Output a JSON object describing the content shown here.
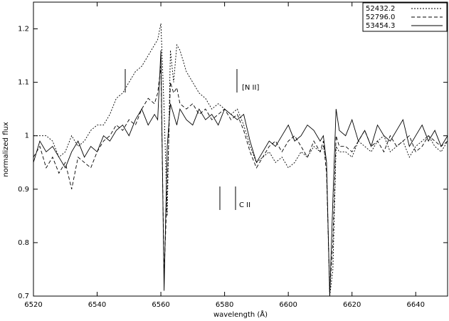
{
  "chart_data": {
    "type": "line",
    "xlabel": "wavelength (Å)",
    "ylabel": "normalized flux",
    "annotations": [
      "[N II]",
      "C II"
    ],
    "x": [
      6520,
      6522,
      6524,
      6526,
      6528,
      6530,
      6532,
      6534,
      6536,
      6538,
      6540,
      6542,
      6544,
      6546,
      6548,
      6550,
      6552,
      6554,
      6556,
      6558,
      6559,
      6560,
      6561,
      6562,
      6563,
      6564,
      6565,
      6566,
      6568,
      6570,
      6572,
      6574,
      6576,
      6578,
      6580,
      6582,
      6584,
      6586,
      6588,
      6590,
      6592,
      6594,
      6596,
      6598,
      6600,
      6602,
      6604,
      6606,
      6608,
      6610,
      6611,
      6612,
      6613,
      6614,
      6615,
      6616,
      6618,
      6620,
      6622,
      6624,
      6626,
      6628,
      6630,
      6632,
      6634,
      6636,
      6638,
      6640,
      6642,
      6644,
      6646,
      6648,
      6650
    ],
    "series": [
      {
        "name": "52432.2",
        "color": "#000000",
        "dash": "2,2",
        "values": [
          1.0,
          1.0,
          1.0,
          0.99,
          0.96,
          0.97,
          1.0,
          0.98,
          0.99,
          1.01,
          1.02,
          1.02,
          1.04,
          1.07,
          1.08,
          1.1,
          1.12,
          1.13,
          1.15,
          1.17,
          1.18,
          1.21,
          1.05,
          0.85,
          1.16,
          1.1,
          1.17,
          1.16,
          1.12,
          1.1,
          1.08,
          1.07,
          1.05,
          1.06,
          1.05,
          1.04,
          1.05,
          1.02,
          0.98,
          0.95,
          0.96,
          0.97,
          0.95,
          0.96,
          0.94,
          0.95,
          0.97,
          0.96,
          0.98,
          0.97,
          0.98,
          0.95,
          0.7,
          0.75,
          0.98,
          0.97,
          0.97,
          0.96,
          0.99,
          0.98,
          0.97,
          0.99,
          1.0,
          0.97,
          0.98,
          0.99,
          0.96,
          0.98,
          0.99,
          1.0,
          0.98,
          0.97,
          0.99
        ]
      },
      {
        "name": "52796.0",
        "color": "#000000",
        "dash": "5,3",
        "values": [
          0.96,
          0.98,
          0.94,
          0.96,
          0.93,
          0.95,
          0.9,
          0.96,
          0.95,
          0.94,
          0.97,
          0.99,
          1.0,
          1.02,
          1.01,
          1.03,
          1.02,
          1.05,
          1.07,
          1.06,
          1.08,
          1.13,
          0.74,
          0.9,
          1.1,
          1.08,
          1.09,
          1.06,
          1.05,
          1.06,
          1.04,
          1.05,
          1.03,
          1.04,
          1.05,
          1.03,
          1.04,
          1.01,
          0.97,
          0.94,
          0.96,
          0.98,
          0.99,
          0.97,
          0.99,
          1.0,
          0.98,
          0.96,
          0.99,
          0.97,
          0.99,
          0.93,
          0.71,
          0.8,
          1.0,
          0.98,
          0.98,
          0.97,
          0.99,
          1.01,
          0.98,
          0.99,
          0.97,
          1.0,
          0.98,
          0.99,
          1.0,
          0.97,
          0.98,
          1.0,
          0.99,
          0.98,
          0.99
        ]
      },
      {
        "name": "53454.3",
        "color": "#000000",
        "dash": "none",
        "values": [
          0.95,
          0.99,
          0.97,
          0.98,
          0.96,
          0.94,
          0.97,
          0.99,
          0.96,
          0.98,
          0.97,
          1.0,
          0.99,
          1.01,
          1.02,
          1.0,
          1.03,
          1.05,
          1.02,
          1.04,
          1.03,
          1.16,
          0.71,
          0.98,
          1.06,
          1.04,
          1.02,
          1.05,
          1.03,
          1.02,
          1.05,
          1.03,
          1.04,
          1.02,
          1.05,
          1.04,
          1.03,
          1.04,
          0.99,
          0.95,
          0.97,
          0.99,
          0.98,
          1.0,
          1.02,
          0.99,
          1.0,
          1.02,
          1.01,
          0.99,
          1.0,
          0.95,
          0.7,
          0.88,
          1.05,
          1.01,
          1.0,
          1.03,
          0.99,
          1.01,
          0.98,
          1.02,
          1.0,
          0.99,
          1.01,
          1.03,
          0.98,
          1.0,
          1.02,
          0.99,
          1.01,
          0.98,
          1.0
        ]
      }
    ],
    "xlim": [
      6520,
      6650
    ],
    "xticks": [
      6520,
      6540,
      6560,
      6580,
      6600,
      6620,
      6640
    ],
    "ylim": [
      0.7,
      1.25
    ],
    "yticks": [
      0.7,
      0.8,
      0.9,
      1,
      1.1,
      1.2
    ],
    "legend": "upper right"
  }
}
